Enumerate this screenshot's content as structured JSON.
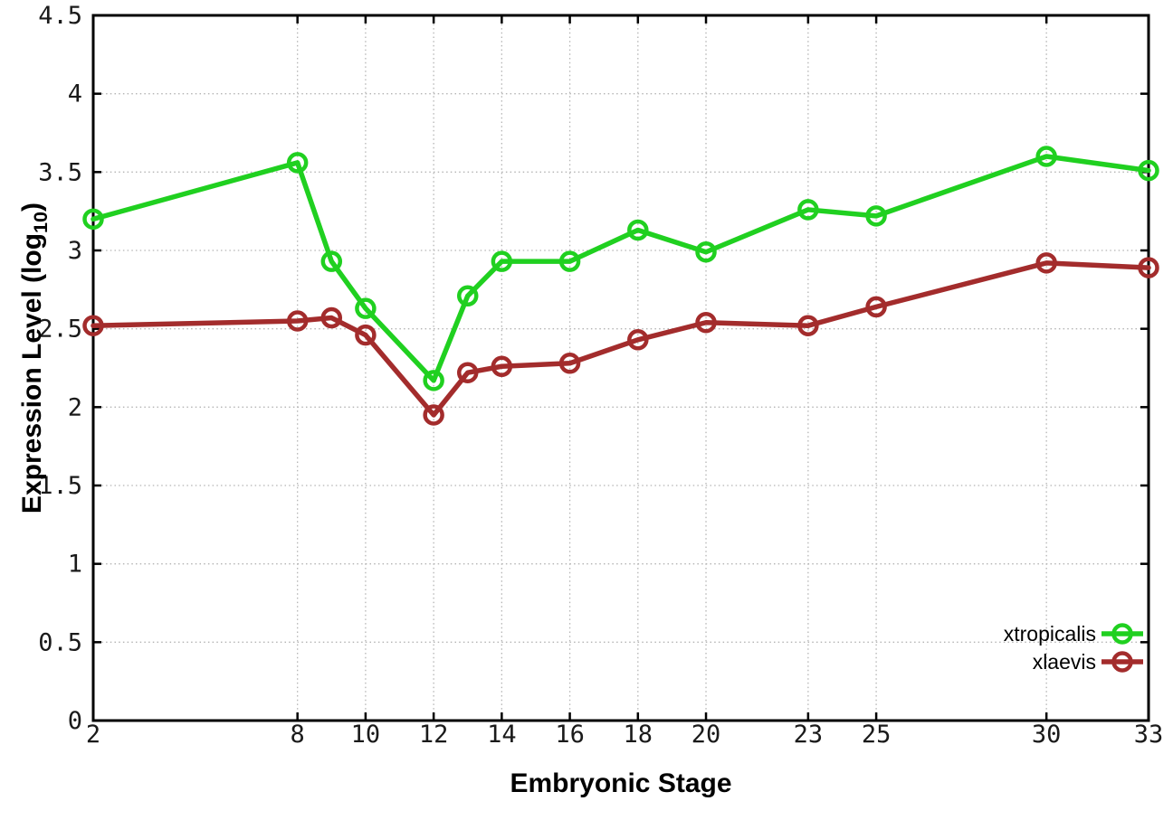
{
  "colors": {
    "background": "#ffffff",
    "axis": "#000000",
    "grid": "#b4b4b4",
    "xtropicalis": "#20d020",
    "xlaevis": "#a32c2c"
  },
  "chart_data": {
    "type": "line",
    "title": "",
    "xlabel": "Embryonic Stage",
    "ylabel": "Expression Level (log10)",
    "ylabel_parts": {
      "main": "Expression Level (log",
      "sub": "10",
      "end": ")"
    },
    "xlim": [
      2,
      33
    ],
    "ylim": [
      0,
      4.5
    ],
    "x_ticks": [
      2,
      8,
      10,
      12,
      14,
      16,
      18,
      20,
      23,
      25,
      30,
      33
    ],
    "y_ticks": [
      0,
      0.5,
      1,
      1.5,
      2,
      2.5,
      3,
      3.5,
      4,
      4.5
    ],
    "grid": true,
    "marker": "open-circle",
    "legend_position": "bottom-right",
    "x": [
      2,
      8,
      9,
      10,
      12,
      13,
      14,
      16,
      18,
      20,
      23,
      25,
      30,
      33
    ],
    "series": [
      {
        "name": "xtropicalis",
        "color": "#20d020",
        "values": [
          3.2,
          3.56,
          2.93,
          2.63,
          2.17,
          2.71,
          2.93,
          2.93,
          3.13,
          2.99,
          3.26,
          3.22,
          3.6,
          3.51
        ]
      },
      {
        "name": "xlaevis",
        "color": "#a32c2c",
        "values": [
          2.52,
          2.55,
          2.57,
          2.46,
          1.95,
          2.22,
          2.26,
          2.28,
          2.43,
          2.54,
          2.52,
          2.64,
          2.92,
          2.89
        ]
      }
    ]
  }
}
